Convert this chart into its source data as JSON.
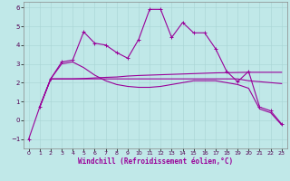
{
  "xlabel": "Windchill (Refroidissement éolien,°C)",
  "background_color": "#c0e8e8",
  "line_color": "#990099",
  "xlim": [
    -0.5,
    23.5
  ],
  "ylim": [
    -1.5,
    6.3
  ],
  "yticks": [
    -1,
    0,
    1,
    2,
    3,
    4,
    5,
    6
  ],
  "xticks": [
    0,
    1,
    2,
    3,
    4,
    5,
    6,
    7,
    8,
    9,
    10,
    11,
    12,
    13,
    14,
    15,
    16,
    17,
    18,
    19,
    20,
    21,
    22,
    23
  ],
  "line1_x": [
    0,
    1,
    2,
    3,
    4,
    5,
    6,
    7,
    8,
    9,
    10,
    11,
    12,
    13,
    14,
    15,
    16,
    17,
    18,
    19,
    20,
    21,
    22,
    23
  ],
  "line1_y": [
    -1.0,
    0.7,
    2.2,
    3.1,
    3.2,
    4.7,
    4.1,
    4.0,
    3.6,
    3.3,
    4.3,
    5.9,
    5.9,
    4.4,
    5.2,
    4.65,
    4.65,
    3.8,
    2.6,
    2.05,
    2.6,
    0.7,
    0.5,
    -0.2
  ],
  "line2_x": [
    1,
    2,
    3,
    4,
    5,
    6,
    7,
    8,
    9,
    10,
    11,
    12,
    13,
    14,
    15,
    16,
    17,
    18,
    19,
    20,
    21,
    22,
    23
  ],
  "line2_y": [
    0.7,
    2.2,
    2.2,
    2.2,
    2.22,
    2.25,
    2.28,
    2.3,
    2.35,
    2.38,
    2.4,
    2.42,
    2.44,
    2.46,
    2.48,
    2.5,
    2.52,
    2.53,
    2.54,
    2.55,
    2.55,
    2.55,
    2.55
  ],
  "line3_x": [
    1,
    2,
    3,
    4,
    5,
    6,
    7,
    8,
    9,
    10,
    11,
    12,
    13,
    14,
    15,
    16,
    17,
    18,
    19,
    20,
    21,
    22,
    23
  ],
  "line3_y": [
    0.7,
    2.2,
    2.2,
    2.2,
    2.2,
    2.2,
    2.2,
    2.2,
    2.2,
    2.2,
    2.2,
    2.2,
    2.2,
    2.2,
    2.2,
    2.2,
    2.2,
    2.2,
    2.2,
    2.1,
    2.05,
    2.0,
    1.95
  ],
  "line4_x": [
    1,
    2,
    3,
    4,
    5,
    6,
    7,
    8,
    9,
    10,
    11,
    12,
    13,
    14,
    15,
    16,
    17,
    18,
    19,
    20,
    21,
    22,
    23
  ],
  "line4_y": [
    0.7,
    2.2,
    3.0,
    3.1,
    2.8,
    2.4,
    2.1,
    1.9,
    1.8,
    1.75,
    1.75,
    1.8,
    1.9,
    2.0,
    2.1,
    2.1,
    2.1,
    2.0,
    1.9,
    1.7,
    0.6,
    0.4,
    -0.25
  ]
}
